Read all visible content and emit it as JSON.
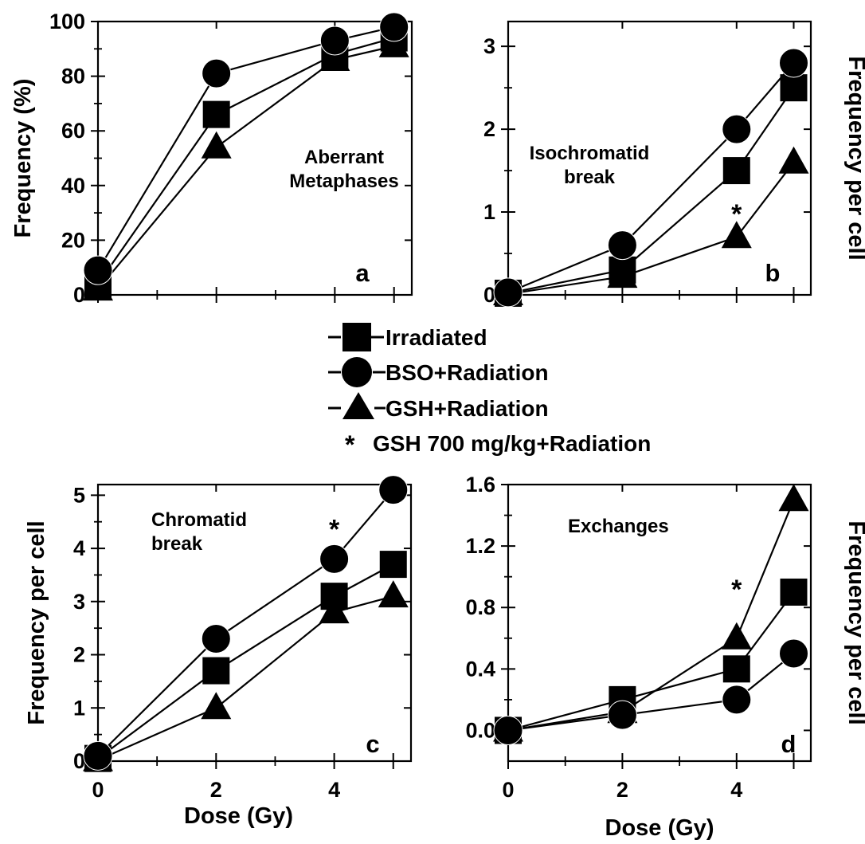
{
  "legend": {
    "irradiated": "Irradiated",
    "bso": "BSO+Radiation",
    "gsh": "GSH+Radiation",
    "star_marker": "*",
    "star_text": "GSH 700 mg/kg+Radiation"
  },
  "colors": {
    "ink": "#000000",
    "background": "#ffffff"
  },
  "chart_data": [
    {
      "panel": "a",
      "type": "line",
      "annotation": [
        "Aberrant",
        "Metaphases"
      ],
      "panel_letter": "a",
      "ylabel": "Frequency (%)",
      "xlabel": "",
      "x": [
        0,
        2,
        4,
        5
      ],
      "x_ticks": [
        0,
        2,
        4,
        5
      ],
      "x_tick_labels": [],
      "y_ticks": [
        0,
        20,
        40,
        60,
        80,
        100
      ],
      "y_tick_labels": [
        "0",
        "20",
        "40",
        "60",
        "80",
        "100"
      ],
      "xlim": [
        0,
        5.3
      ],
      "ylim": [
        0,
        100
      ],
      "ylabel_side": "left",
      "series": [
        {
          "name": "Irradiated",
          "marker": "square",
          "values": [
            4,
            66,
            88,
            94
          ]
        },
        {
          "name": "BSO+Radiation",
          "marker": "circle",
          "values": [
            9,
            81,
            93,
            98
          ]
        },
        {
          "name": "GSH+Radiation",
          "marker": "triangle",
          "values": [
            2,
            54,
            86,
            91
          ]
        }
      ],
      "stars": []
    },
    {
      "panel": "b",
      "type": "line",
      "annotation": [
        "Isochromatid",
        "break"
      ],
      "panel_letter": "b",
      "ylabel": "Frequency per cell",
      "xlabel": "",
      "x": [
        0,
        2,
        4,
        5
      ],
      "x_ticks": [
        0,
        2,
        4,
        5
      ],
      "x_tick_labels": [],
      "y_ticks": [
        0,
        1,
        2,
        3
      ],
      "y_tick_labels": [
        "0",
        "1",
        "2",
        "3"
      ],
      "xlim": [
        0,
        5.3
      ],
      "ylim": [
        0,
        3.3
      ],
      "ylabel_side": "right",
      "series": [
        {
          "name": "Irradiated",
          "marker": "square",
          "values": [
            0.02,
            0.3,
            1.5,
            2.5
          ]
        },
        {
          "name": "BSO+Radiation",
          "marker": "circle",
          "values": [
            0.03,
            0.6,
            2.0,
            2.8
          ]
        },
        {
          "name": "GSH+Radiation",
          "marker": "triangle",
          "values": [
            0.01,
            0.22,
            0.7,
            1.6
          ]
        }
      ],
      "stars": [
        {
          "x": 4,
          "y": 1.0
        }
      ]
    },
    {
      "panel": "c",
      "type": "line",
      "annotation": [
        "Chromatid",
        "break"
      ],
      "panel_letter": "c",
      "ylabel": "Frequency per cell",
      "xlabel": "Dose (Gy)",
      "x": [
        0,
        2,
        4,
        5
      ],
      "x_ticks": [
        0,
        2,
        4,
        5
      ],
      "x_tick_labels": [
        "0",
        "2",
        "4",
        ""
      ],
      "y_ticks": [
        0,
        1,
        2,
        3,
        4,
        5
      ],
      "y_tick_labels": [
        "0",
        "1",
        "2",
        "3",
        "4",
        "5"
      ],
      "xlim": [
        0,
        5.3
      ],
      "ylim": [
        0,
        5.2
      ],
      "ylabel_side": "left",
      "series": [
        {
          "name": "Irradiated",
          "marker": "square",
          "values": [
            0.05,
            1.7,
            3.1,
            3.7
          ]
        },
        {
          "name": "BSO+Radiation",
          "marker": "circle",
          "values": [
            0.1,
            2.3,
            3.8,
            5.1
          ]
        },
        {
          "name": "GSH+Radiation",
          "marker": "triangle",
          "values": [
            0.02,
            1.0,
            2.8,
            3.1
          ]
        }
      ],
      "stars": [
        {
          "x": 4,
          "y": 4.4
        }
      ]
    },
    {
      "panel": "d",
      "type": "line",
      "annotation": [
        "Exchanges"
      ],
      "panel_letter": "d",
      "ylabel": "Frequency per cell",
      "xlabel": "Dose (Gy)",
      "x": [
        0,
        2,
        4,
        5
      ],
      "x_ticks": [
        0,
        2,
        4,
        5
      ],
      "x_tick_labels": [
        "0",
        "2",
        "4",
        ""
      ],
      "y_ticks": [
        0.0,
        0.4,
        0.8,
        1.2,
        1.6
      ],
      "y_tick_labels": [
        "0.0",
        "0.4",
        "0.8",
        "1.2",
        "1.6"
      ],
      "xlim": [
        0,
        5.3
      ],
      "ylim": [
        -0.2,
        1.6
      ],
      "ylabel_side": "right",
      "series": [
        {
          "name": "Irradiated",
          "marker": "square",
          "values": [
            0.0,
            0.2,
            0.4,
            0.9
          ]
        },
        {
          "name": "BSO+Radiation",
          "marker": "circle",
          "values": [
            0.0,
            0.1,
            0.2,
            0.5
          ]
        },
        {
          "name": "GSH+Radiation",
          "marker": "triangle",
          "values": [
            0.0,
            0.12,
            0.6,
            1.5
          ]
        }
      ],
      "stars": [
        {
          "x": 4,
          "y": 0.93
        }
      ]
    }
  ]
}
